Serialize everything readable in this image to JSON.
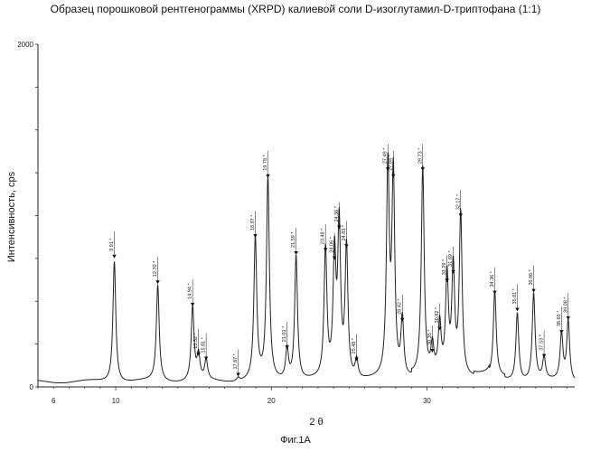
{
  "chart_data": {
    "type": "line",
    "title": "Образец порошковой рентгенограммы (XRPD) калиевой соли D-изоглутамил-D-триптофана (1:1)",
    "xlabel": "2 θ",
    "ylabel": "Интенсивность, cps",
    "xlim": [
      5.0,
      39.5
    ],
    "ylim": [
      0,
      2000
    ],
    "x_ticks": [
      "6",
      "10",
      "20",
      "30"
    ],
    "y_ticks": [
      "0",
      "2000"
    ],
    "grid": false,
    "peaks": [
      {
        "label": "9.91 *",
        "x": 9.91,
        "y": 740
      },
      {
        "label": "12.70 *",
        "x": 12.7,
        "y": 590
      },
      {
        "label": "14.94 *",
        "x": 14.94,
        "y": 460
      },
      {
        "label": "15.32 *",
        "x": 15.32,
        "y": 170
      },
      {
        "label": "15.81 *",
        "x": 15.81,
        "y": 145
      },
      {
        "label": "17.87 *",
        "x": 17.87,
        "y": 50
      },
      {
        "label": "18.97 *",
        "x": 18.97,
        "y": 860
      },
      {
        "label": "19.78 *",
        "x": 19.78,
        "y": 1210
      },
      {
        "label": "21.01 *",
        "x": 21.01,
        "y": 210
      },
      {
        "label": "21.59 *",
        "x": 21.59,
        "y": 760
      },
      {
        "label": "23.48 *",
        "x": 23.48,
        "y": 780
      },
      {
        "label": "24.06 *",
        "x": 24.06,
        "y": 730
      },
      {
        "label": "24.36 *",
        "x": 24.36,
        "y": 910
      },
      {
        "label": "24.83 *",
        "x": 24.83,
        "y": 800
      },
      {
        "label": "25.48 *",
        "x": 25.48,
        "y": 140
      },
      {
        "label": "27.49 *",
        "x": 27.49,
        "y": 1250
      },
      {
        "label": "27.84 *",
        "x": 27.84,
        "y": 1210
      },
      {
        "label": "28.42 *",
        "x": 28.42,
        "y": 370
      },
      {
        "label": "29.73 *",
        "x": 29.73,
        "y": 1250
      },
      {
        "label": "30.35 *",
        "x": 30.35,
        "y": 190
      },
      {
        "label": "30.82 *",
        "x": 30.82,
        "y": 320
      },
      {
        "label": "31.29 *",
        "x": 31.29,
        "y": 600
      },
      {
        "label": "31.69 *",
        "x": 31.69,
        "y": 650
      },
      {
        "label": "32.17 *",
        "x": 32.17,
        "y": 980
      },
      {
        "label": "34.36 *",
        "x": 34.36,
        "y": 530
      },
      {
        "label": "35.81 *",
        "x": 35.81,
        "y": 430
      },
      {
        "label": "36.86 *",
        "x": 36.86,
        "y": 540
      },
      {
        "label": "37.53 *",
        "x": 37.53,
        "y": 160
      },
      {
        "label": "38.65 *",
        "x": 38.65,
        "y": 300
      },
      {
        "label": "39.08 *",
        "x": 39.08,
        "y": 380
      }
    ]
  },
  "figure_caption": "Фиг.1А"
}
